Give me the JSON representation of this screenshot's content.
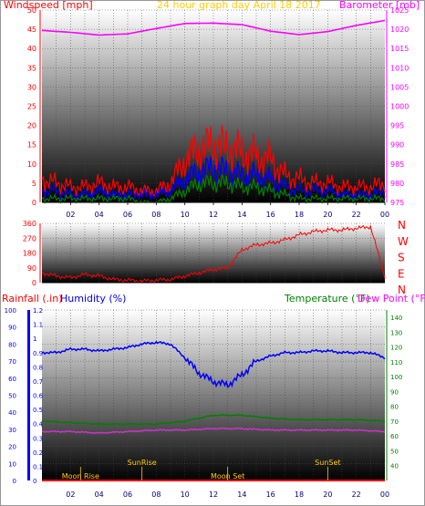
{
  "chart_data": [
    {
      "type": "line",
      "title": "24 hour graph day   April 18 2017",
      "left_axis_label": "Windspeed [mph]",
      "right_axis_label": "Barometer [mb]",
      "x_tick_labels": [
        "02",
        "04",
        "06",
        "08",
        "10",
        "12",
        "14",
        "16",
        "18",
        "20",
        "22",
        "00"
      ],
      "left_ylim": [
        0,
        50
      ],
      "left_ticks": [
        0,
        5,
        10,
        15,
        20,
        25,
        30,
        35,
        40,
        45,
        50
      ],
      "right_ylim": [
        975,
        1025
      ],
      "right_ticks": [
        975,
        980,
        985,
        990,
        995,
        1000,
        1005,
        1010,
        1015,
        1020,
        1025
      ],
      "grid": "on",
      "series": [
        {
          "name": "Barometer",
          "axis": "right",
          "color": "#ff00ff",
          "x": [
            0,
            2,
            4,
            6,
            8,
            10,
            12,
            14,
            16,
            18,
            20,
            22,
            24
          ],
          "values": [
            1019.7,
            1019.2,
            1018.5,
            1018.8,
            1020.2,
            1021.5,
            1021.6,
            1021.2,
            1019.5,
            1018.6,
            1019.4,
            1021.0,
            1022.3
          ]
        },
        {
          "name": "Wind gust",
          "axis": "left",
          "color": "#ff0000",
          "x": [
            0,
            1,
            2,
            3,
            4,
            5,
            6,
            7,
            8,
            9,
            10,
            11,
            12,
            13,
            14,
            15,
            16,
            17,
            18,
            19,
            20,
            21,
            22,
            23,
            24
          ],
          "values": [
            6,
            5,
            4,
            4,
            5,
            4,
            4,
            3,
            3,
            5,
            11,
            14,
            15,
            14,
            13,
            12,
            11,
            7,
            6,
            5,
            5,
            4,
            4,
            4,
            5
          ]
        },
        {
          "name": "Wind average",
          "axis": "left",
          "color": "#0000ff",
          "x": [
            0,
            1,
            2,
            3,
            4,
            5,
            6,
            7,
            8,
            9,
            10,
            11,
            12,
            13,
            14,
            15,
            16,
            17,
            18,
            19,
            20,
            21,
            22,
            23,
            24
          ],
          "values": [
            3,
            3,
            2,
            2,
            3,
            2,
            2,
            2,
            2,
            3,
            6,
            8,
            9,
            8,
            7,
            7,
            6,
            4,
            3,
            3,
            3,
            2,
            2,
            2,
            3
          ]
        },
        {
          "name": "Wind minimum",
          "axis": "left",
          "color": "#008000",
          "x": [
            0,
            1,
            2,
            3,
            4,
            5,
            6,
            7,
            8,
            9,
            10,
            11,
            12,
            13,
            14,
            15,
            16,
            17,
            18,
            19,
            20,
            21,
            22,
            23,
            24
          ],
          "values": [
            1,
            1,
            1,
            1,
            1,
            1,
            1,
            0,
            0,
            1,
            3,
            5,
            5,
            5,
            4,
            4,
            3,
            2,
            1,
            1,
            1,
            1,
            1,
            1,
            1
          ]
        }
      ]
    },
    {
      "type": "line",
      "ylim": [
        0,
        360
      ],
      "left_ticks": [
        0,
        90,
        180,
        270,
        360
      ],
      "right_labels": [
        "N",
        "W",
        "S",
        "E",
        "N"
      ],
      "grid": "on",
      "series": [
        {
          "name": "Wind direction",
          "color": "#ff0000",
          "x": [
            0,
            1,
            2,
            3,
            4,
            5,
            6,
            7,
            8,
            9,
            10,
            11,
            12,
            13,
            14,
            15,
            16,
            17,
            18,
            19,
            20,
            21,
            22,
            23,
            24
          ],
          "values": [
            60,
            40,
            30,
            50,
            40,
            20,
            15,
            10,
            15,
            20,
            40,
            60,
            80,
            90,
            200,
            230,
            240,
            260,
            290,
            310,
            320,
            320,
            330,
            340,
            35
          ]
        }
      ]
    },
    {
      "type": "line",
      "left_axis_label": "Rainfall (.in)",
      "left_axis2_label": "Humidity (%)",
      "right_axis_label": "Temperature (°F)",
      "right_axis2_label": "Dew Point (°F)",
      "x_tick_labels": [
        "02",
        "04",
        "06",
        "08",
        "10",
        "12",
        "14",
        "16",
        "18",
        "20",
        "22",
        "00"
      ],
      "humidity_ylim": [
        0,
        100
      ],
      "humidity_ticks": [
        0,
        10,
        20,
        30,
        40,
        50,
        60,
        70,
        80,
        90,
        100
      ],
      "rain_ylim": [
        0,
        1.2
      ],
      "rain_ticks": [
        "0",
        "0.1",
        "0.2",
        "0.3",
        "0.4",
        "0.5",
        "0.6",
        "0.7",
        "0.8",
        "0.9",
        "1",
        "1.1",
        "1.2"
      ],
      "temp_ylim": [
        30,
        145
      ],
      "temp_ticks": [
        40,
        50,
        60,
        70,
        80,
        90,
        100,
        110,
        120,
        130,
        140
      ],
      "grid": "on",
      "annotations": [
        {
          "label": "Moon Rise",
          "x": 2.7
        },
        {
          "label": "SunRise",
          "x": 7.0
        },
        {
          "label": "Moon Set",
          "x": 13.0
        },
        {
          "label": "SunSet",
          "x": 20.0
        }
      ],
      "series": [
        {
          "name": "Humidity",
          "color": "#0000ff",
          "x": [
            0,
            1,
            2,
            3,
            4,
            5,
            6,
            7,
            8,
            9,
            10,
            11,
            12,
            13,
            14,
            15,
            16,
            17,
            18,
            19,
            20,
            21,
            22,
            23,
            24
          ],
          "values": [
            75,
            75,
            77,
            77,
            76,
            77,
            78,
            80,
            81,
            80,
            72,
            63,
            58,
            56,
            62,
            70,
            73,
            75,
            75,
            76,
            76,
            75,
            75,
            75,
            72
          ]
        },
        {
          "name": "Temperature",
          "color": "#008000",
          "x": [
            0,
            2,
            4,
            6,
            8,
            10,
            12,
            14,
            16,
            18,
            20,
            22,
            24
          ],
          "values": [
            70,
            69,
            68,
            68,
            68,
            70,
            74,
            74,
            72,
            71,
            71,
            71,
            70
          ]
        },
        {
          "name": "Dew Point",
          "color": "#cc33cc",
          "x": [
            0,
            2,
            4,
            6,
            8,
            10,
            12,
            14,
            16,
            18,
            20,
            22,
            24
          ],
          "values": [
            63,
            63,
            62,
            63,
            64,
            64,
            65,
            65,
            64,
            64,
            64,
            64,
            63
          ]
        },
        {
          "name": "Rainfall",
          "color": "#ff0000",
          "x": [
            0,
            24
          ],
          "values": [
            0,
            0
          ]
        }
      ]
    }
  ]
}
